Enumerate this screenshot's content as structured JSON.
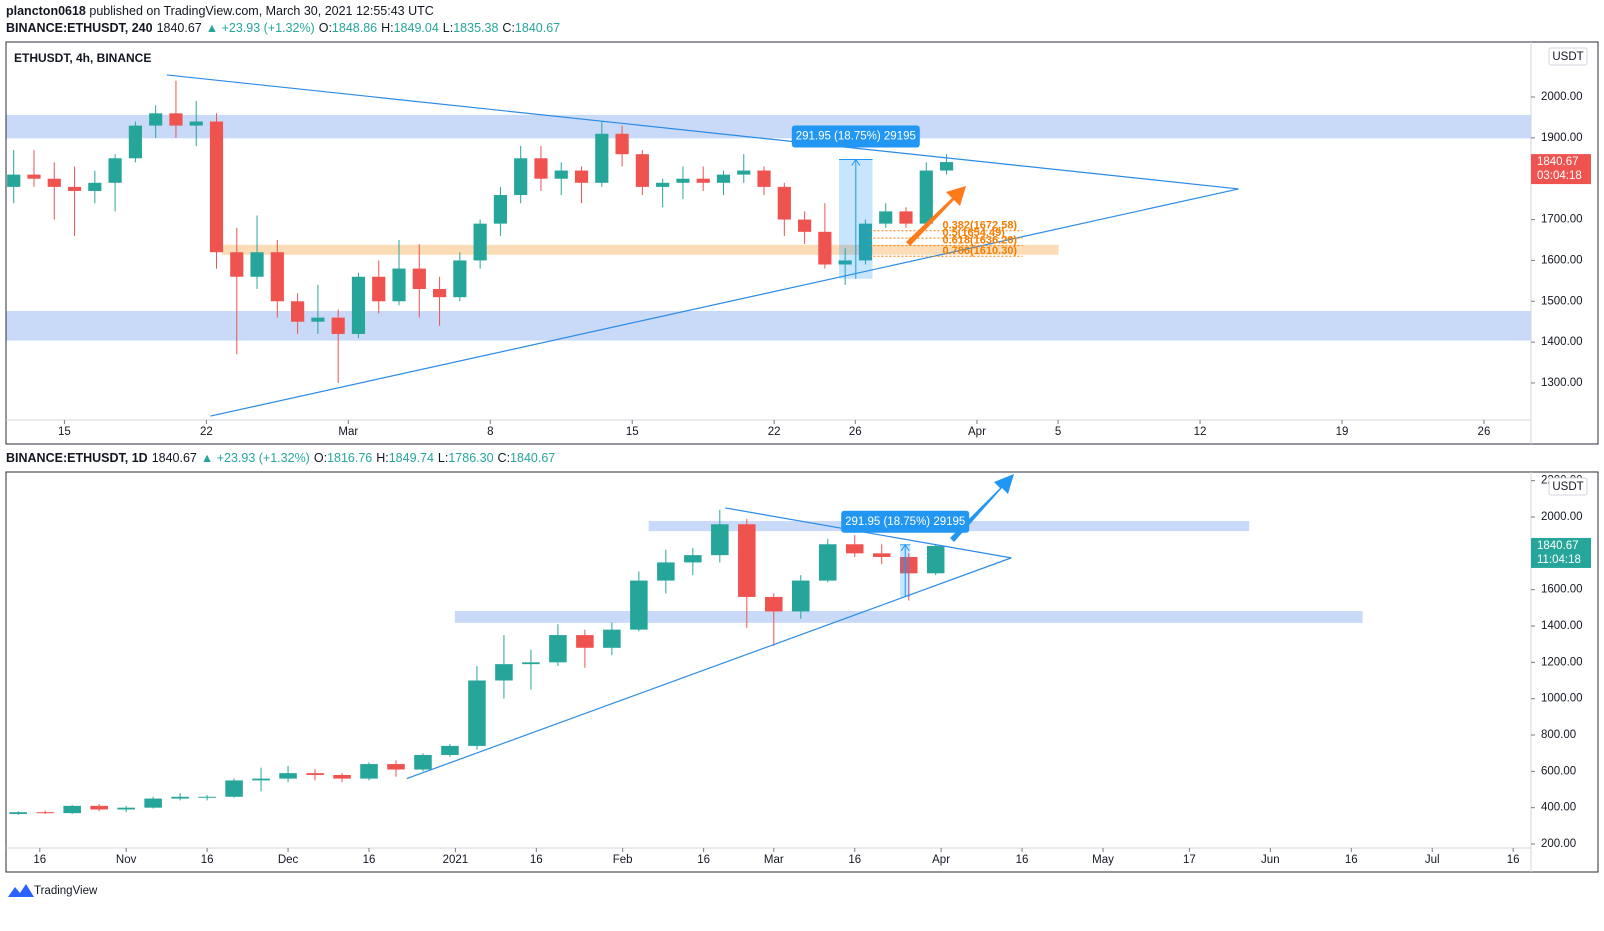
{
  "header": {
    "author": "plancton0618",
    "published": "published on TradingView.com, March 30, 2021 12:55:43 UTC"
  },
  "footer": {
    "brand": "TradingView"
  },
  "chart_data": [
    {
      "type": "candlestick",
      "quote": {
        "symbol": "BINANCE:ETHUSDT, 240",
        "last": "1840.67",
        "change": "▲ +23.93 (+1.32%)",
        "open_label": "O:",
        "open": "1848.86",
        "high_label": "H:",
        "high": "1849.04",
        "low_label": "L:",
        "low": "1835.38",
        "close_label": "C:",
        "close": "1840.67"
      },
      "legend": "ETHUSDT, 4h, BINANCE",
      "unit": "USDT",
      "up_color": "#26a69a",
      "down_color": "#ef5350",
      "line_color": "#2a8be6",
      "xlim": [
        12.12,
        87.32
      ],
      "ylim": [
        1209.4,
        2134.6
      ],
      "xticks": [
        15,
        22,
        {
          "value": 29,
          "label": "Mar"
        },
        {
          "value": 36,
          "label": "8"
        },
        {
          "value": 43,
          "label": "15"
        },
        {
          "value": 50,
          "label": "22"
        },
        {
          "value": 54,
          "label": "26"
        },
        {
          "value": 60,
          "label": "Apr"
        },
        {
          "value": 64,
          "label": "5"
        },
        {
          "value": 71,
          "label": "12"
        },
        {
          "value": 78,
          "label": "19"
        },
        {
          "value": 85,
          "label": "26"
        }
      ],
      "yticks": [
        {
          "value": 1300,
          "label": "1300.00"
        },
        {
          "value": 1400,
          "label": "1400.00"
        },
        {
          "value": 1500,
          "label": "1500.00"
        },
        {
          "value": 1600,
          "label": "1600.00"
        },
        {
          "value": 1700,
          "label": "1700.00"
        },
        {
          "value": 1800,
          "label": "1800.00"
        },
        {
          "value": 1900,
          "label": "1900.00"
        },
        {
          "value": 2000,
          "label": "2000.00"
        }
      ],
      "x": [
        12.5,
        13.5,
        14.5,
        15.5,
        16.5,
        17.5,
        18.5,
        19.5,
        20.5,
        21.5,
        22.5,
        23.5,
        24.5,
        25.5,
        26.5,
        27.5,
        28.5,
        29.5,
        30.5,
        31.5,
        32.5,
        33.5,
        34.5,
        35.5,
        36.5,
        37.5,
        38.5,
        39.5,
        40.5,
        41.5,
        42.5,
        43.5,
        44.5,
        45.5,
        46.5,
        47.5,
        48.5,
        49.5,
        50.5,
        51.5,
        52.5,
        53.5,
        54.5,
        55.5,
        56.5,
        57.5,
        58.5
      ],
      "open": [
        1780,
        1810,
        1800,
        1780,
        1770,
        1790,
        1850,
        1930,
        1960,
        1930,
        1940,
        1620,
        1560,
        1620,
        1500,
        1450,
        1460,
        1420,
        1560,
        1500,
        1580,
        1530,
        1510,
        1600,
        1690,
        1760,
        1850,
        1800,
        1820,
        1790,
        1910,
        1860,
        1780,
        1790,
        1800,
        1790,
        1810,
        1820,
        1780,
        1700,
        1670,
        1590,
        1600,
        1690,
        1720,
        1690,
        1820
      ],
      "high": [
        1870,
        1870,
        1840,
        1830,
        1820,
        1860,
        1940,
        1980,
        2040,
        1990,
        1960,
        1680,
        1710,
        1650,
        1520,
        1540,
        1480,
        1570,
        1600,
        1650,
        1640,
        1560,
        1620,
        1700,
        1780,
        1880,
        1880,
        1840,
        1830,
        1940,
        1930,
        1870,
        1800,
        1830,
        1830,
        1820,
        1860,
        1830,
        1790,
        1720,
        1740,
        1630,
        1700,
        1740,
        1730,
        1840,
        1860
      ],
      "low": [
        1740,
        1780,
        1700,
        1660,
        1740,
        1720,
        1840,
        1900,
        1900,
        1880,
        1580,
        1370,
        1530,
        1460,
        1420,
        1420,
        1300,
        1410,
        1470,
        1490,
        1460,
        1440,
        1500,
        1580,
        1660,
        1740,
        1770,
        1760,
        1740,
        1780,
        1830,
        1760,
        1730,
        1750,
        1770,
        1760,
        1790,
        1760,
        1660,
        1640,
        1580,
        1540,
        1590,
        1680,
        1680,
        1690,
        1810
      ],
      "close": [
        1810,
        1800,
        1780,
        1770,
        1790,
        1850,
        1930,
        1960,
        1930,
        1940,
        1620,
        1560,
        1620,
        1500,
        1450,
        1460,
        1420,
        1560,
        1500,
        1580,
        1530,
        1510,
        1600,
        1690,
        1760,
        1850,
        1800,
        1820,
        1790,
        1910,
        1860,
        1780,
        1790,
        1800,
        1790,
        1810,
        1820,
        1780,
        1700,
        1670,
        1590,
        1600,
        1690,
        1720,
        1690,
        1820,
        1840.67
      ],
      "zones": [
        {
          "x": [
            12.12,
            87.32
          ],
          "y": [
            1900,
            1955
          ],
          "color": "#c9daf8"
        },
        {
          "x": [
            12.12,
            87.32
          ],
          "y": [
            1405,
            1475
          ],
          "color": "#c9daf8"
        },
        {
          "x": [
            22.8,
            64.0
          ],
          "y": [
            1615,
            1637
          ],
          "color": "#fbdcb6"
        }
      ],
      "trendlines": [
        {
          "x": [
            20.05,
            72.9
          ],
          "y": [
            2054,
            1775
          ]
        },
        {
          "x": [
            22.2,
            72.9
          ],
          "y": [
            1219,
            1775
          ]
        }
      ],
      "measure": {
        "label": "291.95 (18.75%) 29195",
        "x": [
          53.2,
          54.85
        ],
        "y": [
          1555,
          1847
        ]
      },
      "fib": [
        {
          "label": "0.382(1672.58)",
          "value": 1672.58
        },
        {
          "label": "0.5(1654.49)",
          "value": 1654.49
        },
        {
          "label": "0.618(1636.20)",
          "value": 1636.2
        },
        {
          "label": "0.786(1610.30)",
          "value": 1610.3
        }
      ],
      "fib_x": [
        54.7,
        58.3
      ],
      "fib_color": "#f57c00",
      "price_label": {
        "value": 1840.67,
        "countdown": "03:04:18",
        "color": "#ef5350"
      }
    },
    {
      "type": "candlestick",
      "quote": {
        "symbol": "BINANCE:ETHUSDT, 1D",
        "last": "1840.67",
        "change": "▲ +23.93 (+1.32%)",
        "open_label": "O:",
        "open": "1816.76",
        "high_label": "H:",
        "high": "1849.74",
        "low_label": "L:",
        "low": "1786.30",
        "close_label": "C:",
        "close": "1840.67"
      },
      "unit": "USDT",
      "up_color": "#26a69a",
      "down_color": "#ef5350",
      "line_color": "#2a8be6",
      "xlim": [
        8.74,
        291.3
      ],
      "ylim": [
        178,
        2247.7
      ],
      "xticks": [
        {
          "value": 15,
          "label": "16"
        },
        {
          "value": 31,
          "label": "Nov"
        },
        {
          "value": 46,
          "label": "16"
        },
        {
          "value": 61,
          "label": "Dec"
        },
        {
          "value": 76,
          "label": "16"
        },
        {
          "value": 92,
          "label": "2021"
        },
        {
          "value": 107,
          "label": "16"
        },
        {
          "value": 123,
          "label": "Feb"
        },
        {
          "value": 138,
          "label": "16"
        },
        {
          "value": 151,
          "label": "Mar"
        },
        {
          "value": 166,
          "label": "16"
        },
        {
          "value": 182,
          "label": "Apr"
        },
        {
          "value": 197,
          "label": "16"
        },
        {
          "value": 212,
          "label": "May"
        },
        {
          "value": 228,
          "label": "17"
        },
        {
          "value": 243,
          "label": "Jun"
        },
        {
          "value": 258,
          "label": "16"
        },
        {
          "value": 273,
          "label": "Jul"
        },
        {
          "value": 288,
          "label": "16"
        }
      ],
      "yticks": [
        {
          "value": 200,
          "label": "200.00"
        },
        {
          "value": 400,
          "label": "400.00"
        },
        {
          "value": 600,
          "label": "600.00"
        },
        {
          "value": 800,
          "label": "800.00"
        },
        {
          "value": 1000,
          "label": "1000.00"
        },
        {
          "value": 1200,
          "label": "1200.00"
        },
        {
          "value": 1400,
          "label": "1400.00"
        },
        {
          "value": 1600,
          "label": "1600.00"
        },
        {
          "value": 1800,
          "label": "1800.00"
        },
        {
          "value": 2000,
          "label": "2000.00"
        },
        {
          "value": 2200,
          "label": "2200.00"
        }
      ],
      "x": [
        11,
        16,
        21,
        26,
        31,
        36,
        41,
        46,
        51,
        56,
        61,
        66,
        71,
        76,
        81,
        86,
        91,
        96,
        101,
        106,
        111,
        116,
        121,
        126,
        131,
        136,
        141,
        146,
        151,
        156,
        161,
        166,
        171,
        176,
        181
      ],
      "open": [
        365,
        375,
        370,
        410,
        390,
        400,
        450,
        460,
        460,
        550,
        560,
        590,
        580,
        560,
        640,
        610,
        690,
        740,
        1100,
        1190,
        1200,
        1350,
        1280,
        1380,
        1650,
        1750,
        1790,
        1960,
        1560,
        1480,
        1650,
        1850,
        1800,
        1780,
        1690
      ],
      "high": [
        380,
        385,
        415,
        420,
        410,
        460,
        480,
        470,
        560,
        620,
        630,
        610,
        590,
        650,
        660,
        700,
        750,
        1180,
        1350,
        1270,
        1410,
        1380,
        1420,
        1700,
        1820,
        1830,
        2040,
        1990,
        1580,
        1680,
        1880,
        1900,
        1850,
        1800,
        1850
      ],
      "low": [
        360,
        365,
        365,
        380,
        375,
        395,
        440,
        440,
        455,
        490,
        540,
        550,
        540,
        550,
        570,
        600,
        680,
        720,
        1000,
        1050,
        1180,
        1170,
        1240,
        1370,
        1580,
        1680,
        1750,
        1390,
        1290,
        1440,
        1640,
        1780,
        1740,
        1540,
        1680
      ],
      "close": [
        375,
        370,
        410,
        390,
        400,
        450,
        460,
        460,
        550,
        560,
        590,
        580,
        560,
        640,
        610,
        690,
        740,
        1100,
        1190,
        1200,
        1350,
        1280,
        1380,
        1650,
        1750,
        1790,
        1960,
        1560,
        1480,
        1650,
        1850,
        1800,
        1780,
        1690,
        1840.67
      ],
      "zones": [
        {
          "x": [
            127.9,
            239
          ],
          "y": [
            1925,
            1975
          ],
          "color": "#c9daf8"
        },
        {
          "x": [
            92,
            260
          ],
          "y": [
            1420,
            1480
          ],
          "color": "#c9daf8"
        }
      ],
      "trendlines": [
        {
          "x": [
            142,
            195
          ],
          "y": [
            2050,
            1775
          ]
        },
        {
          "x": [
            83,
            195
          ],
          "y": [
            560,
            1775
          ]
        }
      ],
      "measure": {
        "label": "291.95 (18.75%) 29195",
        "x": [
          174.4,
          176.3
        ],
        "y": [
          1560,
          1847
        ]
      },
      "price_label": {
        "value": 1840.67,
        "countdown": "11:04:18",
        "color": "#26a69a"
      }
    }
  ]
}
